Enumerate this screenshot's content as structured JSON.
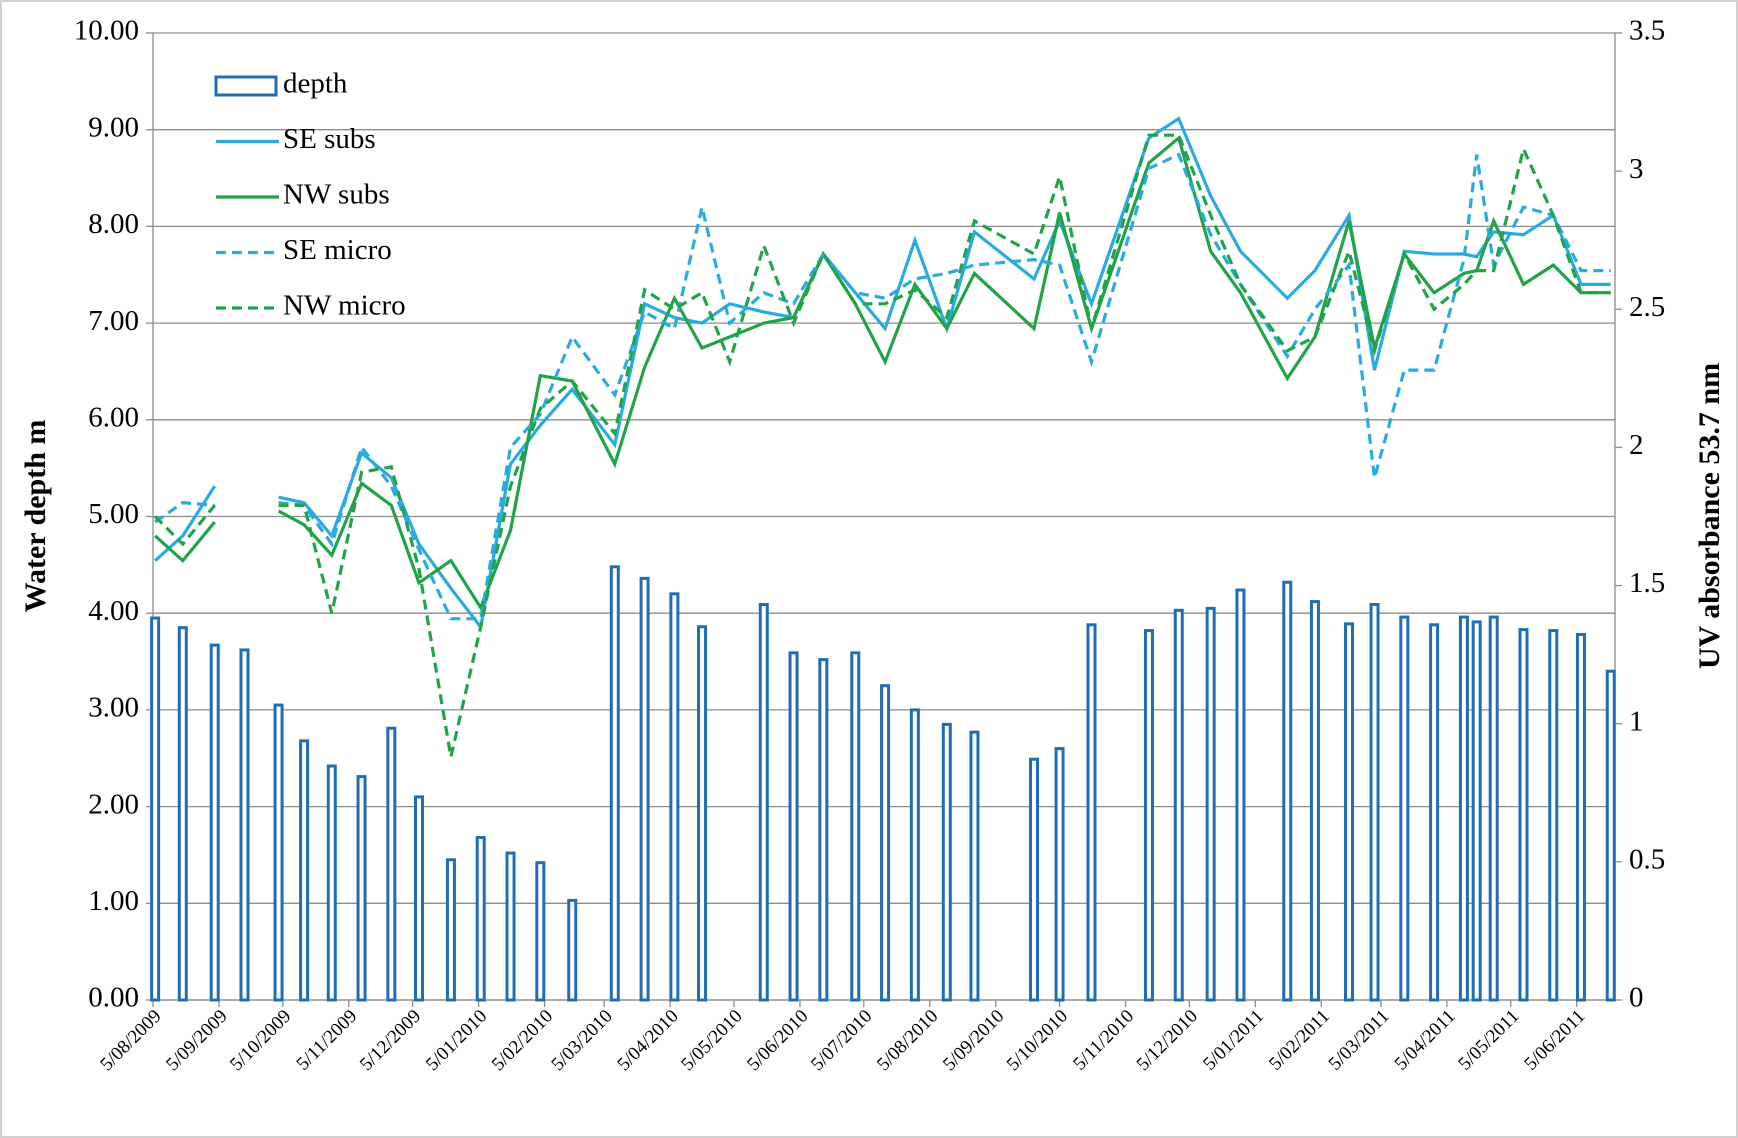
{
  "chart_data": {
    "type": "combo",
    "ylabel": "Water depth m",
    "y2label": "UV absorbance  53.7 nm",
    "x": [
      "2009-08-06",
      "2009-08-19",
      "2009-09-03",
      "2009-09-17",
      "2009-10-03",
      "2009-10-15",
      "2009-10-28",
      "2009-11-11",
      "2009-11-25",
      "2009-12-08",
      "2009-12-23",
      "2010-01-06",
      "2010-01-20",
      "2010-02-03",
      "2010-02-18",
      "2010-03-10",
      "2010-03-24",
      "2010-04-07",
      "2010-04-20",
      "2010-05-03",
      "2010-05-19",
      "2010-06-02",
      "2010-06-16",
      "2010-07-01",
      "2010-07-15",
      "2010-07-29",
      "2010-08-13",
      "2010-08-26",
      "2010-09-23",
      "2010-10-05",
      "2010-10-20",
      "2010-11-16",
      "2010-11-30",
      "2010-12-15",
      "2010-12-29",
      "2011-01-20",
      "2011-02-02",
      "2011-02-18",
      "2011-03-02",
      "2011-03-16",
      "2011-03-30",
      "2011-04-13",
      "2011-04-19",
      "2011-04-27",
      "2011-05-11",
      "2011-05-25",
      "2011-06-07",
      "2011-06-21"
    ],
    "series": [
      {
        "name": "depth",
        "type": "bar",
        "axis": "y",
        "color": "#1f6db3",
        "values": [
          3.95,
          3.85,
          3.67,
          3.62,
          3.05,
          2.68,
          2.42,
          2.31,
          2.81,
          2.1,
          1.45,
          1.68,
          1.52,
          1.42,
          1.03,
          4.48,
          4.36,
          4.2,
          3.86,
          null,
          4.09,
          3.59,
          3.52,
          3.59,
          3.25,
          3.0,
          2.85,
          2.77,
          2.49,
          2.6,
          3.88,
          3.82,
          4.03,
          4.05,
          4.24,
          4.32,
          4.12,
          3.89,
          4.09,
          3.96,
          3.88,
          3.96,
          3.91,
          3.96,
          3.83,
          3.82,
          3.78,
          3.4
        ]
      },
      {
        "name": "SE subs",
        "type": "line",
        "axis": "y2",
        "color": "#29abe2",
        "line_style": "solid",
        "values": [
          1.59,
          1.68,
          1.86,
          null,
          1.82,
          1.8,
          1.68,
          1.98,
          1.89,
          1.65,
          1.49,
          1.35,
          1.94,
          2.08,
          2.21,
          2.01,
          2.52,
          2.47,
          2.45,
          2.52,
          2.49,
          2.47,
          2.7,
          2.56,
          2.43,
          2.75,
          2.43,
          2.78,
          2.61,
          2.82,
          2.52,
          3.12,
          3.19,
          2.91,
          2.71,
          2.54,
          2.64,
          2.84,
          2.28,
          2.71,
          2.7,
          2.7,
          2.69,
          2.78,
          2.77,
          2.84,
          2.59,
          2.59
        ]
      },
      {
        "name": "NW subs",
        "type": "line",
        "axis": "y2",
        "color": "#21a348",
        "line_style": "solid",
        "values": [
          1.68,
          1.59,
          1.73,
          null,
          1.77,
          1.72,
          1.61,
          1.87,
          1.79,
          1.51,
          1.59,
          1.42,
          1.7,
          2.26,
          2.24,
          1.94,
          2.29,
          2.54,
          2.36,
          2.4,
          2.45,
          2.47,
          2.7,
          2.52,
          2.31,
          2.59,
          2.43,
          2.63,
          2.43,
          2.85,
          2.43,
          3.03,
          3.12,
          2.71,
          2.56,
          2.25,
          2.4,
          2.82,
          2.36,
          2.7,
          2.56,
          2.63,
          2.64,
          2.82,
          2.59,
          2.66,
          2.56,
          2.56
        ]
      },
      {
        "name": "SE micro",
        "type": "line",
        "axis": "y2",
        "color": "#29abe2",
        "line_style": "dashed",
        "values": [
          1.73,
          1.8,
          1.79,
          null,
          1.8,
          1.79,
          1.65,
          2.0,
          1.86,
          1.63,
          1.38,
          1.38,
          2.0,
          2.12,
          2.4,
          2.19,
          2.49,
          2.43,
          2.87,
          2.45,
          2.56,
          2.52,
          2.7,
          2.56,
          2.54,
          2.61,
          2.63,
          2.66,
          2.68,
          2.66,
          2.31,
          3.01,
          3.06,
          2.77,
          2.59,
          2.33,
          2.5,
          2.66,
          1.89,
          2.28,
          2.28,
          2.68,
          3.06,
          2.66,
          2.87,
          2.84,
          2.64,
          2.64
        ]
      },
      {
        "name": "NW micro",
        "type": "line",
        "axis": "y2",
        "color": "#21a348",
        "line_style": "dashed",
        "values": [
          1.75,
          1.65,
          1.79,
          null,
          1.79,
          1.79,
          1.4,
          1.91,
          1.93,
          1.56,
          0.88,
          1.35,
          1.86,
          2.14,
          2.24,
          2.05,
          2.57,
          2.5,
          2.56,
          2.31,
          2.73,
          2.45,
          2.7,
          2.52,
          2.52,
          2.57,
          2.47,
          2.82,
          2.7,
          2.98,
          2.43,
          3.13,
          3.13,
          2.84,
          2.59,
          2.35,
          2.4,
          2.71,
          2.35,
          2.7,
          2.5,
          2.59,
          2.64,
          2.64,
          3.08,
          2.84,
          2.56,
          2.56
        ]
      }
    ],
    "xlim": [
      "2009-08-05",
      "2011-06-23"
    ],
    "xticks": [
      {
        "value": "2009-08-05",
        "label": "5/08/2009"
      },
      {
        "value": "2009-09-05",
        "label": "5/09/2009"
      },
      {
        "value": "2009-10-05",
        "label": "5/10/2009"
      },
      {
        "value": "2009-11-05",
        "label": "5/11/2009"
      },
      {
        "value": "2009-12-05",
        "label": "5/12/2009"
      },
      {
        "value": "2010-01-05",
        "label": "5/01/2010"
      },
      {
        "value": "2010-02-05",
        "label": "5/02/2010"
      },
      {
        "value": "2010-03-05",
        "label": "5/03/2010"
      },
      {
        "value": "2010-04-05",
        "label": "5/04/2010"
      },
      {
        "value": "2010-05-05",
        "label": "5/05/2010"
      },
      {
        "value": "2010-06-05",
        "label": "5/06/2010"
      },
      {
        "value": "2010-07-05",
        "label": "5/07/2010"
      },
      {
        "value": "2010-08-05",
        "label": "5/08/2010"
      },
      {
        "value": "2010-09-05",
        "label": "5/09/2010"
      },
      {
        "value": "2010-10-05",
        "label": "5/10/2010"
      },
      {
        "value": "2010-11-05",
        "label": "5/11/2010"
      },
      {
        "value": "2010-12-05",
        "label": "5/12/2010"
      },
      {
        "value": "2011-01-05",
        "label": "5/01/2011"
      },
      {
        "value": "2011-02-05",
        "label": "5/02/2011"
      },
      {
        "value": "2011-03-05",
        "label": "5/03/2011"
      },
      {
        "value": "2011-04-05",
        "label": "5/04/2011"
      },
      {
        "value": "2011-05-05",
        "label": "5/05/2011"
      },
      {
        "value": "2011-06-05",
        "label": "5/06/2011"
      }
    ],
    "ylim": [
      0,
      10
    ],
    "yticks": [
      {
        "value": 0,
        "label": "0.00"
      },
      {
        "value": 1,
        "label": "1.00"
      },
      {
        "value": 2,
        "label": "2.00"
      },
      {
        "value": 3,
        "label": "3.00"
      },
      {
        "value": 4,
        "label": "4.00"
      },
      {
        "value": 5,
        "label": "5.00"
      },
      {
        "value": 6,
        "label": "6.00"
      },
      {
        "value": 7,
        "label": "7.00"
      },
      {
        "value": 8,
        "label": "8.00"
      },
      {
        "value": 9,
        "label": "9.00"
      },
      {
        "value": 10,
        "label": "10.00"
      }
    ],
    "y2lim": [
      0,
      3.5
    ],
    "y2ticks": [
      0,
      0.5,
      1,
      1.5,
      2,
      2.5,
      3,
      3.5
    ],
    "grid": true,
    "legend": "upper left"
  }
}
